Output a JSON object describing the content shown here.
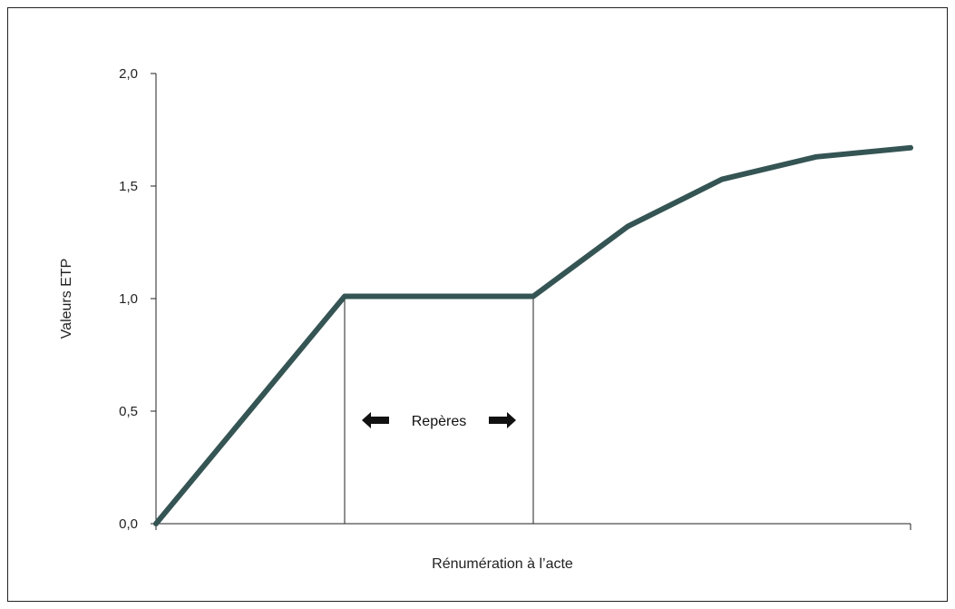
{
  "chart_data": {
    "type": "line",
    "ylabel": "Valeurs ETP",
    "xlabel": "Rénumération à l’acte",
    "ylim": [
      0,
      2
    ],
    "xlim": [
      0,
      8
    ],
    "y_ticks": [
      {
        "value": 0,
        "label": "0,0"
      },
      {
        "value": 0.5,
        "label": "0,5"
      },
      {
        "value": 1,
        "label": "1,0"
      },
      {
        "value": 1.5,
        "label": "1,5"
      },
      {
        "value": 2,
        "label": "2,0"
      }
    ],
    "series": [
      {
        "color": "#355454",
        "x": [
          0,
          2,
          4,
          5,
          6,
          7,
          8
        ],
        "y": [
          0,
          1.01,
          1.01,
          1.32,
          1.53,
          1.63,
          1.67
        ]
      }
    ],
    "reference_lines": [
      {
        "x": 2,
        "y_to": 1.01
      },
      {
        "x": 4,
        "y_to": 1.01
      }
    ],
    "annotation": {
      "text": "Repères",
      "x": 3,
      "y": 0.5
    },
    "grid": false,
    "legend": "none"
  }
}
